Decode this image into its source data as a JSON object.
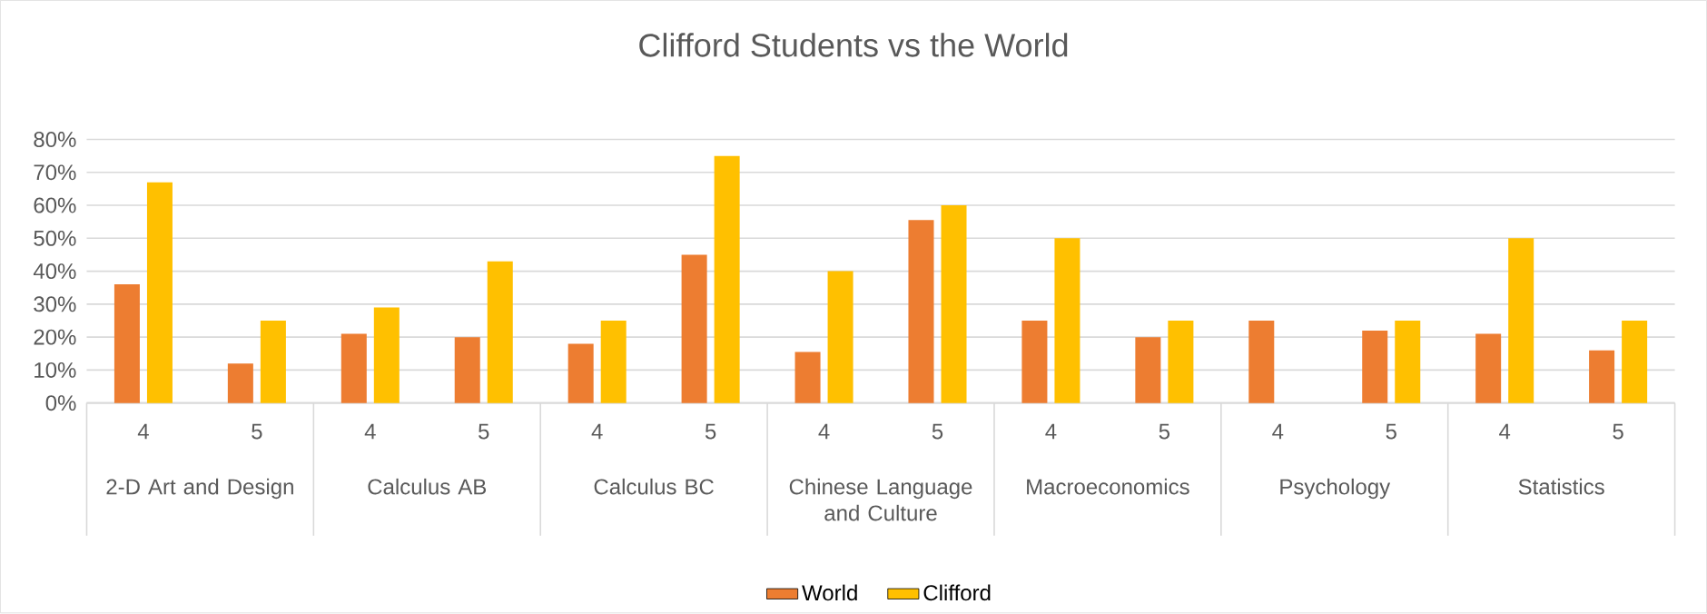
{
  "chart_data": {
    "type": "bar",
    "title": "Clifford Students vs the World",
    "categories": [
      "4",
      "5",
      "4",
      "5",
      "4",
      "5",
      "4",
      "5",
      "4",
      "5",
      "4",
      "5",
      "4",
      "5"
    ],
    "series": [
      {
        "name": "World",
        "color": "#ed7d31",
        "values": [
          36,
          12,
          21,
          20,
          18,
          45,
          15.5,
          55.5,
          25,
          20,
          25,
          22,
          21,
          16
        ]
      },
      {
        "name": "Clifford",
        "color": "#ffc000",
        "values": [
          67,
          25,
          29,
          43,
          25,
          75,
          40,
          60,
          50,
          25,
          null,
          25,
          50,
          25
        ]
      }
    ],
    "annotations": [
      "2-D Art and Design",
      "Calculus AB",
      "Calculus BC",
      "Chinese Language and Culture",
      "Macroeconomics",
      "Psychology",
      "Statistics"
    ],
    "ylim": [
      0,
      80
    ],
    "yticks": [
      {
        "value": 0,
        "label": "0%"
      },
      {
        "value": 10,
        "label": "10%"
      },
      {
        "value": 20,
        "label": "20%"
      },
      {
        "value": 30,
        "label": "30%"
      },
      {
        "value": 40,
        "label": "40%"
      },
      {
        "value": 50,
        "label": "50%"
      },
      {
        "value": 60,
        "label": "60%"
      },
      {
        "value": 70,
        "label": "70%"
      },
      {
        "value": 80,
        "label": "80%"
      }
    ],
    "grid": "y",
    "legend": "bottom"
  }
}
